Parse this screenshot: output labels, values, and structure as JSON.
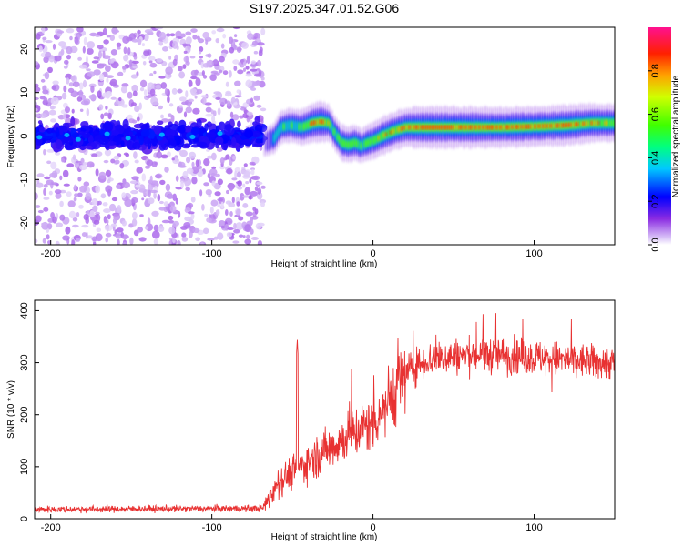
{
  "title": "S197.2025.347.01.52.G06",
  "chart_data": [
    {
      "type": "heatmap",
      "name": "spectrogram",
      "xlabel": "Height of straight line (km)",
      "ylabel": "Frequency (Hz)",
      "xlim": [
        -210,
        150
      ],
      "ylim": [
        -25,
        25
      ],
      "xticks": [
        -200,
        -100,
        0,
        100
      ],
      "xtick_labels": [
        "-200",
        "-100",
        "0",
        "100"
      ],
      "yticks": [
        -20,
        -10,
        0,
        10,
        20
      ],
      "ytick_labels": [
        "-20",
        "-10",
        "0",
        "10",
        "20"
      ],
      "noise_region_x": [
        -210,
        -68
      ],
      "ridge": {
        "x": [
          -68,
          -62,
          -58,
          -52,
          -45,
          -38,
          -33,
          -28,
          -24,
          -20,
          -16,
          -12,
          -8,
          -4,
          0,
          5,
          10,
          15,
          20,
          30,
          50,
          80,
          100,
          120,
          135,
          150
        ],
        "freq": [
          -1.5,
          -0.5,
          2.0,
          2.5,
          2.0,
          3.0,
          3.3,
          3.0,
          0.5,
          -1.5,
          -2.0,
          -1.5,
          -2.2,
          -1.5,
          -1.0,
          0.0,
          0.8,
          1.5,
          2.0,
          2.0,
          2.0,
          2.0,
          2.2,
          2.5,
          3.0,
          3.0
        ],
        "amplitude": [
          0.15,
          0.35,
          0.45,
          0.55,
          0.6,
          0.85,
          0.95,
          0.7,
          0.5,
          0.7,
          0.6,
          0.65,
          0.55,
          0.6,
          0.7,
          0.75,
          0.8,
          0.8,
          0.85,
          0.95,
          0.95,
          0.9,
          0.85,
          0.9,
          0.8,
          0.7
        ]
      },
      "colorbar": {
        "label": "Normalized spectral amplitude",
        "ticks": [
          0.0,
          0.2,
          0.4,
          0.6,
          0.8
        ],
        "tick_labels": [
          "0.0",
          "0.2",
          "0.4",
          "0.6",
          "0.8"
        ],
        "range": [
          0,
          1
        ]
      }
    },
    {
      "type": "line",
      "name": "snr",
      "xlabel": "Height of straight line (km)",
      "ylabel": "SNR (10 * v/v)",
      "xlim": [
        -210,
        150
      ],
      "ylim": [
        0,
        420
      ],
      "xticks": [
        -200,
        -100,
        0,
        100
      ],
      "xtick_labels": [
        "-200",
        "-100",
        "0",
        "100"
      ],
      "yticks": [
        0,
        100,
        200,
        300,
        400
      ],
      "ytick_labels": [
        "0",
        "100",
        "200",
        "300",
        "400"
      ],
      "color": "#e83232",
      "mean_profile": {
        "x": [
          -210,
          -68,
          -62,
          -55,
          -45,
          -30,
          -15,
          0,
          10,
          20,
          30,
          40,
          60,
          80,
          100,
          120,
          140,
          150
        ],
        "snr": [
          18,
          20,
          55,
          80,
          100,
          130,
          160,
          185,
          230,
          280,
          300,
          310,
          315,
          315,
          310,
          305,
          300,
          300
        ]
      },
      "spike": {
        "x": -47,
        "snr": 345
      }
    }
  ]
}
